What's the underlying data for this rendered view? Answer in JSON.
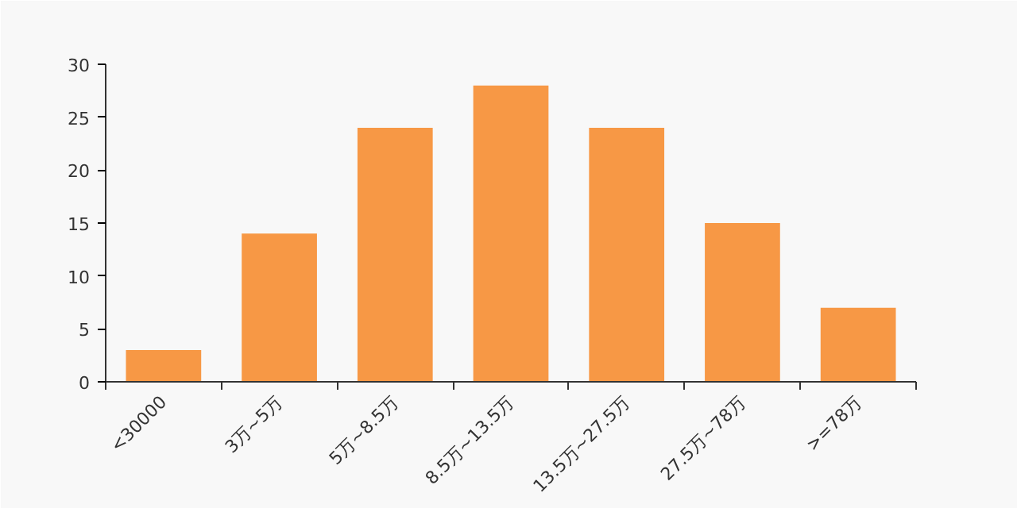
{
  "chart_data": {
    "type": "bar",
    "categories": [
      "<30000",
      "3万~5万",
      "5万~8.5万",
      "8.5万~13.5万",
      "13.5万~27.5万",
      "27.5万~78万",
      ">=78万"
    ],
    "values": [
      3,
      14,
      24,
      28,
      24,
      15,
      7
    ],
    "color": "#f79845",
    "ylim": [
      0,
      30
    ],
    "yticks": [
      0,
      5,
      10,
      15,
      20,
      25,
      30
    ],
    "grid": false
  }
}
